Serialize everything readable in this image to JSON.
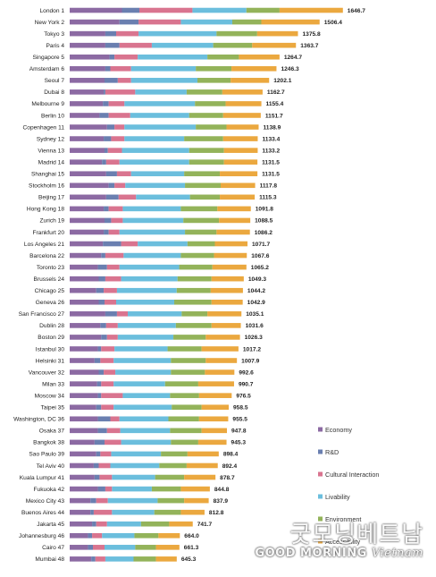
{
  "chart_data": {
    "type": "bar",
    "orientation": "horizontal",
    "stacked": true,
    "categories": [
      "London 1",
      "New York 2",
      "Tokyo 3",
      "Paris 4",
      "Singapore 5",
      "Amsterdam 6",
      "Seoul 7",
      "Dubai 8",
      "Melbourne 9",
      "Berlin 10",
      "Copenhagen 11",
      "Sydney 12",
      "Vienna 13",
      "Madrid 14",
      "Shanghai 15",
      "Stockholm 16",
      "Beijing 17",
      "Hong Kong 18",
      "Zurich 19",
      "Frankfurt 20",
      "Los Angeles 21",
      "Barcelona 22",
      "Toronto 23",
      "Brussels 24",
      "Chicago 25",
      "Geneva 26",
      "San Francisco 27",
      "Dublin 28",
      "Boston 29",
      "Istanbul 30",
      "Helsinki 31",
      "Vancouver 32",
      "Milan 33",
      "Moscow 34",
      "Taipei 35",
      "Washington, DC 36",
      "Osaka 37",
      "Bangkok 38",
      "Sao Paulo 39",
      "Tel Aviv 40",
      "Kuala Lumpur 41",
      "Fukuoka 42",
      "Mexico City 43",
      "Buenos Aires 44",
      "Jakarta 45",
      "Johannesburg 46",
      "Cairo 47",
      "Mumbai 48"
    ],
    "totals": [
      1646.7,
      1506.4,
      1375.8,
      1363.7,
      1264.7,
      1246.3,
      1202.1,
      1162.7,
      1155.4,
      1151.7,
      1138.9,
      1133.4,
      1133.2,
      1131.5,
      1131.5,
      1117.8,
      1115.3,
      1091.8,
      1088.5,
      1086.2,
      1071.7,
      1067.6,
      1065.2,
      1049.3,
      1044.2,
      1042.9,
      1035.1,
      1031.6,
      1026.3,
      1017.2,
      1007.9,
      992.6,
      990.7,
      976.5,
      958.5,
      955.5,
      947.8,
      945.3,
      898.4,
      892.4,
      878.7,
      844.8,
      837.9,
      812.8,
      741.7,
      664.0,
      661.3,
      645.3
    ],
    "series": [
      {
        "name": "Economy",
        "color": "#8c6aa3",
        "values": [
          315,
          300,
          215,
          215,
          240,
          215,
          210,
          205,
          200,
          180,
          225,
          205,
          210,
          195,
          220,
          235,
          220,
          205,
          210,
          205,
          200,
          190,
          170,
          175,
          160,
          175,
          215,
          185,
          190,
          170,
          150,
          175,
          165,
          170,
          160,
          170,
          170,
          150,
          160,
          145,
          150,
          170,
          125,
          125,
          135,
          110,
          110,
          130
        ]
      },
      {
        "name": "R&D",
        "color": "#6a7fb0",
        "values": [
          105,
          115,
          65,
          85,
          30,
          30,
          80,
          10,
          35,
          55,
          45,
          45,
          20,
          25,
          65,
          35,
          75,
          30,
          40,
          30,
          110,
          25,
          55,
          40,
          45,
          35,
          70,
          35,
          35,
          20,
          35,
          30,
          25,
          20,
          30,
          75,
          55,
          60,
          25,
          30,
          30,
          45,
          35,
          20,
          25,
          25,
          30,
          25
        ]
      },
      {
        "name": "Cultural Interaction",
        "color": "#d9748f",
        "values": [
          320,
          255,
          135,
          195,
          140,
          125,
          80,
          180,
          95,
          130,
          60,
          80,
          85,
          80,
          85,
          65,
          105,
          85,
          70,
          65,
          100,
          110,
          75,
          95,
          80,
          70,
          65,
          70,
          65,
          80,
          80,
          70,
          75,
          130,
          75,
          55,
          80,
          100,
          65,
          70,
          75,
          40,
          70,
          110,
          65,
          60,
          70,
          60
        ]
      },
      {
        "name": "Livability",
        "color": "#6bbedd",
        "values": [
          325,
          310,
          470,
          370,
          420,
          390,
          400,
          310,
          425,
          355,
          430,
          360,
          405,
          420,
          320,
          360,
          325,
          350,
          365,
          395,
          300,
          345,
          360,
          340,
          360,
          350,
          325,
          350,
          335,
          320,
          345,
          335,
          310,
          285,
          350,
          295,
          300,
          300,
          300,
          295,
          260,
          240,
          300,
          255,
          205,
          195,
          185,
          170
        ]
      },
      {
        "name": "Environment",
        "color": "#93b35a",
        "values": [
          200,
          175,
          245,
          235,
          190,
          215,
          200,
          215,
          185,
          205,
          185,
          235,
          210,
          210,
          215,
          215,
          180,
          220,
          215,
          190,
          165,
          200,
          200,
          205,
          205,
          225,
          155,
          215,
          195,
          205,
          210,
          205,
          200,
          175,
          180,
          185,
          190,
          165,
          160,
          165,
          175,
          175,
          160,
          160,
          170,
          145,
          125,
          135
        ]
      },
      {
        "name": "Accessibility",
        "color": "#eba83f",
        "values": [
          381.7,
          351.4,
          245.8,
          263.7,
          244.7,
          271.3,
          232.1,
          242.7,
          215.4,
          226.7,
          193.9,
          208.4,
          203.2,
          201.5,
          226.5,
          207.8,
          210.3,
          201.8,
          188.5,
          201.2,
          196.7,
          197.6,
          205.2,
          194.3,
          194.2,
          187.9,
          205.1,
          176.6,
          206.3,
          222.2,
          187.9,
          177.6,
          215.7,
          196.5,
          163.5,
          175.5,
          152.8,
          170.3,
          188.4,
          187.4,
          188.7,
          174.8,
          147.9,
          142.8,
          141.7,
          129.0,
          141.3,
          125.3
        ]
      }
    ],
    "legend_position": "bottom-right",
    "grid": false
  },
  "legend_items": [
    {
      "label": "Economy",
      "color": "#8c6aa3"
    },
    {
      "label": "R&D",
      "color": "#6a7fb0"
    },
    {
      "label": "Cultural Interaction",
      "color": "#d9748f"
    },
    {
      "label": "Livability",
      "color": "#6bbedd"
    },
    {
      "label": "Environment",
      "color": "#93b35a"
    },
    {
      "label": "Accessibility",
      "color": "#eba83f"
    }
  ],
  "watermark": {
    "main": "굿모닝베트남",
    "sub_left": "GOOD MORNING",
    "sub_right": "Vietnam"
  }
}
